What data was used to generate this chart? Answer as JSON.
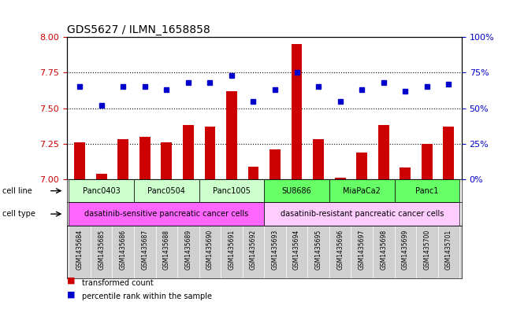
{
  "title": "GDS5627 / ILMN_1658858",
  "samples": [
    "GSM1435684",
    "GSM1435685",
    "GSM1435686",
    "GSM1435687",
    "GSM1435688",
    "GSM1435689",
    "GSM1435690",
    "GSM1435691",
    "GSM1435692",
    "GSM1435693",
    "GSM1435694",
    "GSM1435695",
    "GSM1435696",
    "GSM1435697",
    "GSM1435698",
    "GSM1435699",
    "GSM1435700",
    "GSM1435701"
  ],
  "transformed_count": [
    7.26,
    7.04,
    7.28,
    7.3,
    7.26,
    7.38,
    7.37,
    7.62,
    7.09,
    7.21,
    7.95,
    7.28,
    7.01,
    7.19,
    7.38,
    7.08,
    7.25,
    7.37
  ],
  "percentile_rank": [
    65,
    52,
    65,
    65,
    63,
    68,
    68,
    73,
    55,
    63,
    75,
    65,
    55,
    63,
    68,
    62,
    65,
    67
  ],
  "cell_lines": [
    {
      "name": "Panc0403",
      "start": 0,
      "end": 3,
      "color": "#ccffcc"
    },
    {
      "name": "Panc0504",
      "start": 3,
      "end": 6,
      "color": "#ccffcc"
    },
    {
      "name": "Panc1005",
      "start": 6,
      "end": 9,
      "color": "#ccffcc"
    },
    {
      "name": "SU8686",
      "start": 9,
      "end": 12,
      "color": "#66ff66"
    },
    {
      "name": "MiaPaCa2",
      "start": 12,
      "end": 15,
      "color": "#66ff66"
    },
    {
      "name": "Panc1",
      "start": 15,
      "end": 18,
      "color": "#66ff66"
    }
  ],
  "cell_types": [
    {
      "name": "dasatinib-sensitive pancreatic cancer cells",
      "start": 0,
      "end": 9,
      "color": "#ff66ff"
    },
    {
      "name": "dasatinib-resistant pancreatic cancer cells",
      "start": 9,
      "end": 18,
      "color": "#ffccff"
    }
  ],
  "ylim_left": [
    7.0,
    8.0
  ],
  "ylim_right": [
    0,
    100
  ],
  "yticks_left": [
    7.0,
    7.25,
    7.5,
    7.75,
    8.0
  ],
  "yticks_right": [
    0,
    25,
    50,
    75,
    100
  ],
  "bar_color": "#cc0000",
  "dot_color": "#0000cc",
  "bar_width": 0.5,
  "sample_label_fontsize": 5.5,
  "annotation_fontsize": 7,
  "title_fontsize": 10
}
